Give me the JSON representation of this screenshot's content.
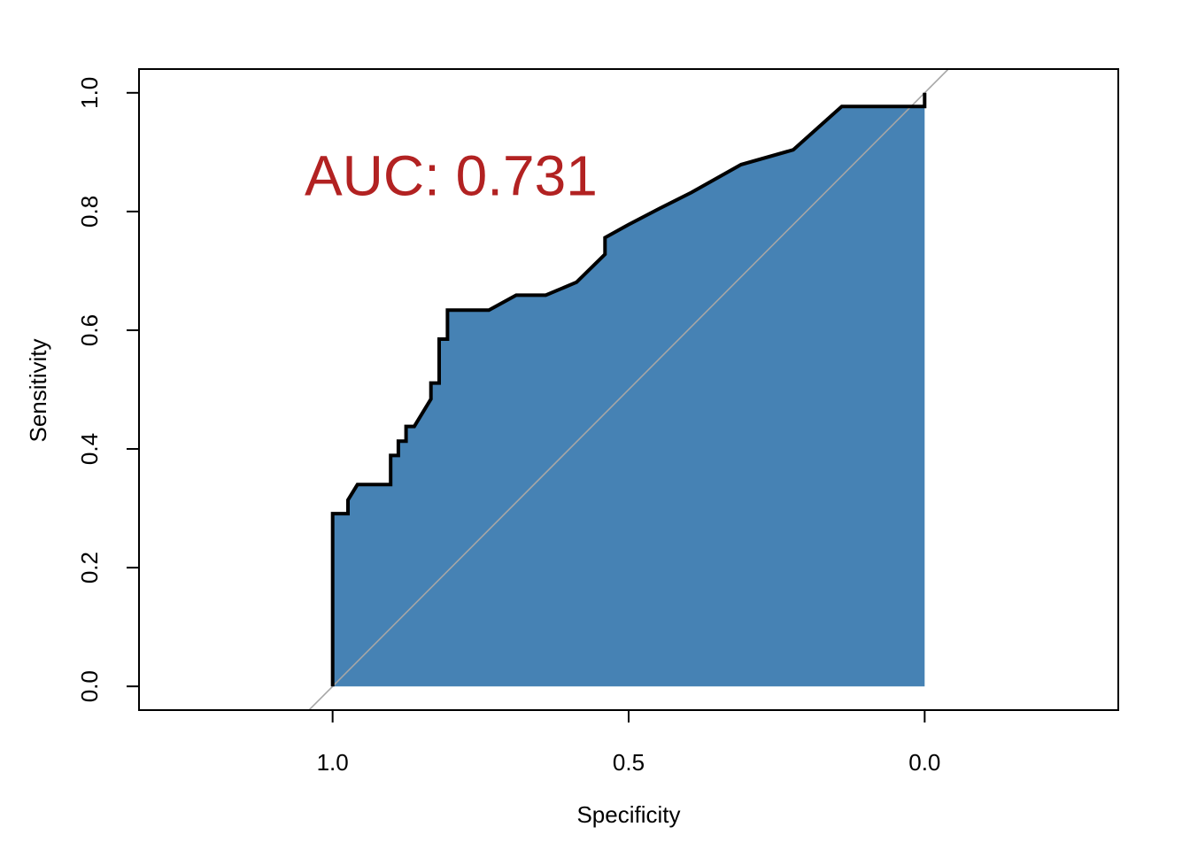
{
  "chart_data": {
    "type": "area",
    "xlabel": "Specificity",
    "ylabel": "Sensitivity",
    "x_reversed": true,
    "xlim": [
      1.327,
      -0.327
    ],
    "ylim": [
      -0.04,
      1.04
    ],
    "x_ticks": [
      {
        "value": 1.0,
        "label": "1.0"
      },
      {
        "value": 0.5,
        "label": "0.5"
      },
      {
        "value": 0.0,
        "label": "0.0"
      }
    ],
    "y_ticks": [
      {
        "value": 0.0,
        "label": "0.0"
      },
      {
        "value": 0.2,
        "label": "0.2"
      },
      {
        "value": 0.4,
        "label": "0.4"
      },
      {
        "value": 0.6,
        "label": "0.6"
      },
      {
        "value": 0.8,
        "label": "0.8"
      },
      {
        "value": 1.0,
        "label": "1.0"
      }
    ],
    "annotation": {
      "text": "AUC: 0.731",
      "x": 0.8,
      "y": 0.86
    },
    "roc_curve": {
      "specificity": [
        1.0,
        1.0,
        0.974,
        0.974,
        0.958,
        0.902,
        0.902,
        0.889,
        0.889,
        0.876,
        0.876,
        0.862,
        0.834,
        0.834,
        0.82,
        0.82,
        0.806,
        0.806,
        0.736,
        0.69,
        0.64,
        0.588,
        0.54,
        0.54,
        0.5,
        0.448,
        0.394,
        0.31,
        0.222,
        0.14,
        0.0,
        0.0
      ],
      "sensitivity": [
        0.0,
        0.291,
        0.291,
        0.314,
        0.34,
        0.34,
        0.389,
        0.389,
        0.413,
        0.413,
        0.438,
        0.438,
        0.484,
        0.511,
        0.511,
        0.585,
        0.585,
        0.634,
        0.634,
        0.659,
        0.659,
        0.681,
        0.728,
        0.756,
        0.778,
        0.805,
        0.832,
        0.879,
        0.904,
        0.977,
        0.977,
        1.0
      ]
    },
    "colors": {
      "fill": "#4682b4",
      "curve": "#000000",
      "diagonal": "#a6a6a6",
      "annotation": "#b22222",
      "frame": "#000000"
    },
    "grid": false,
    "legend": "none"
  }
}
